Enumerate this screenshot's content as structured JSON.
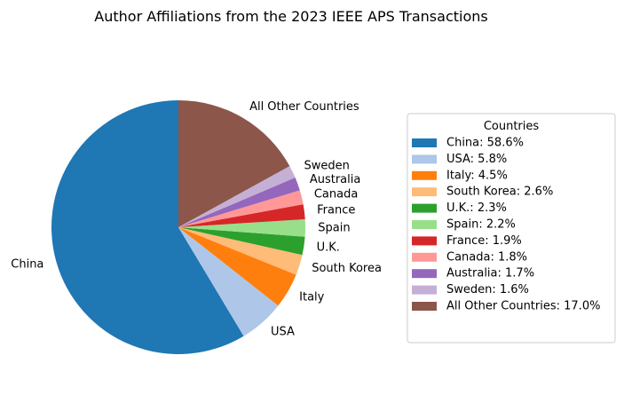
{
  "chart_data": {
    "type": "pie",
    "title": "Author Affiliations from the 2023 IEEE APS Transactions",
    "legend_title": "Countries",
    "legend_position": "right",
    "start_angle_deg": 90,
    "direction": "counterclockwise",
    "slices": [
      {
        "label": "China",
        "value": 58.6,
        "color": "#1f77b4",
        "legend": "China: 58.6%"
      },
      {
        "label": "USA",
        "value": 5.8,
        "color": "#aec7e8",
        "legend": "USA: 5.8%"
      },
      {
        "label": "Italy",
        "value": 4.5,
        "color": "#ff7f0e",
        "legend": "Italy: 4.5%"
      },
      {
        "label": "South Korea",
        "value": 2.6,
        "color": "#ffbb78",
        "legend": "South Korea: 2.6%"
      },
      {
        "label": "U.K.",
        "value": 2.3,
        "color": "#2ca02c",
        "legend": "U.K.: 2.3%"
      },
      {
        "label": "Spain",
        "value": 2.2,
        "color": "#98df8a",
        "legend": "Spain: 2.2%"
      },
      {
        "label": "France",
        "value": 1.9,
        "color": "#d62728",
        "legend": "France: 1.9%"
      },
      {
        "label": "Canada",
        "value": 1.8,
        "color": "#ff9896",
        "legend": "Canada: 1.8%"
      },
      {
        "label": "Australia",
        "value": 1.7,
        "color": "#9467bd",
        "legend": "Australia: 1.7%"
      },
      {
        "label": "Sweden",
        "value": 1.6,
        "color": "#c5b0d5",
        "legend": "Sweden: 1.6%"
      },
      {
        "label": "All Other Countries",
        "value": 17.0,
        "color": "#8c564b",
        "legend": "All Other Countries: 17.0%"
      }
    ]
  }
}
